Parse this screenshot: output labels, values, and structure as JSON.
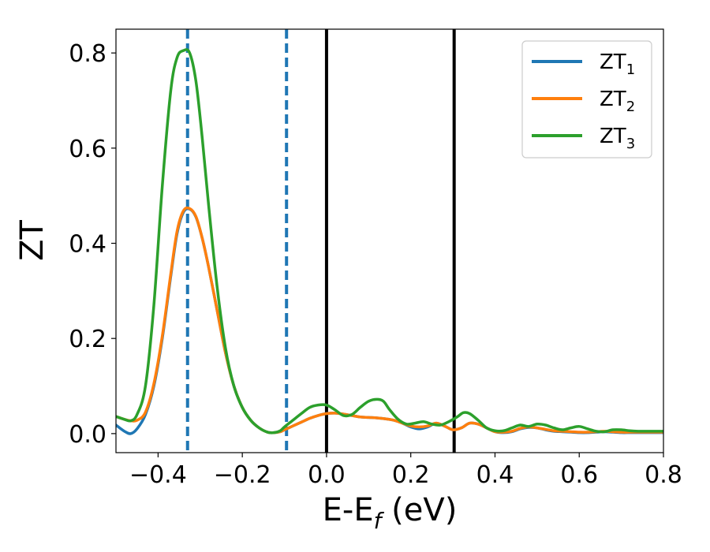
{
  "chart_data": {
    "type": "line",
    "title": "",
    "xlabel": "E-E_f (eV)",
    "xlabel_main": "E-E",
    "xlabel_sub": "f",
    "xlabel_tail": " (eV)",
    "ylabel": "ZT",
    "xlim": [
      -0.5,
      0.8
    ],
    "ylim": [
      -0.04,
      0.85
    ],
    "xticks": [
      -0.4,
      -0.2,
      0.0,
      0.2,
      0.4,
      0.6,
      0.8
    ],
    "xtick_labels": [
      "−0.4",
      "−0.2",
      "0.0",
      "0.2",
      "0.4",
      "0.6",
      "0.8"
    ],
    "yticks": [
      0.0,
      0.2,
      0.4,
      0.6,
      0.8
    ],
    "ytick_labels": [
      "0.0",
      "0.2",
      "0.4",
      "0.6",
      "0.8"
    ],
    "grid": false,
    "legend_position": "top-right",
    "vlines": [
      {
        "x": -0.33,
        "style": "dashed",
        "color": "#1f77b4"
      },
      {
        "x": -0.095,
        "style": "dashed",
        "color": "#1f77b4"
      },
      {
        "x": 0.0,
        "style": "solid",
        "color": "#000000"
      },
      {
        "x": 0.303,
        "style": "solid",
        "color": "#000000"
      }
    ],
    "series": [
      {
        "name": "ZT1",
        "name_main": "ZT",
        "name_sub": "1",
        "color": "#1f77b4",
        "x": [
          -0.5,
          -0.48,
          -0.465,
          -0.45,
          -0.43,
          -0.41,
          -0.39,
          -0.37,
          -0.355,
          -0.34,
          -0.325,
          -0.31,
          -0.295,
          -0.28,
          -0.26,
          -0.24,
          -0.22,
          -0.2,
          -0.18,
          -0.16,
          -0.14,
          -0.125,
          -0.11,
          -0.1,
          -0.08,
          -0.06,
          -0.04,
          -0.02,
          0.0,
          0.02,
          0.04,
          0.06,
          0.08,
          0.1,
          0.12,
          0.14,
          0.16,
          0.18,
          0.2,
          0.22,
          0.24,
          0.26,
          0.28,
          0.3,
          0.32,
          0.34,
          0.36,
          0.38,
          0.4,
          0.42,
          0.44,
          0.46,
          0.48,
          0.5,
          0.52,
          0.54,
          0.56,
          0.58,
          0.6,
          0.62,
          0.64,
          0.66,
          0.68,
          0.7,
          0.72,
          0.74,
          0.76,
          0.78,
          0.8
        ],
        "y": [
          0.018,
          0.005,
          0.0,
          0.01,
          0.04,
          0.1,
          0.2,
          0.33,
          0.42,
          0.465,
          0.472,
          0.455,
          0.41,
          0.35,
          0.26,
          0.17,
          0.1,
          0.055,
          0.028,
          0.012,
          0.003,
          0.002,
          0.004,
          0.008,
          0.016,
          0.024,
          0.032,
          0.038,
          0.042,
          0.043,
          0.041,
          0.038,
          0.035,
          0.034,
          0.033,
          0.031,
          0.028,
          0.022,
          0.014,
          0.01,
          0.014,
          0.022,
          0.016,
          0.008,
          0.012,
          0.022,
          0.02,
          0.012,
          0.004,
          0.002,
          0.004,
          0.01,
          0.013,
          0.012,
          0.008,
          0.005,
          0.004,
          0.003,
          0.002,
          0.002,
          0.003,
          0.004,
          0.003,
          0.002,
          0.002,
          0.002,
          0.002,
          0.002,
          0.002
        ]
      },
      {
        "name": "ZT2",
        "name_main": "ZT",
        "name_sub": "2",
        "color": "#ff7f0e",
        "x": [
          -0.5,
          -0.48,
          -0.465,
          -0.45,
          -0.43,
          -0.41,
          -0.39,
          -0.37,
          -0.355,
          -0.34,
          -0.325,
          -0.31,
          -0.295,
          -0.28,
          -0.26,
          -0.24,
          -0.22,
          -0.2,
          -0.18,
          -0.16,
          -0.14,
          -0.125,
          -0.11,
          -0.1,
          -0.08,
          -0.06,
          -0.04,
          -0.02,
          0.0,
          0.02,
          0.04,
          0.06,
          0.08,
          0.1,
          0.12,
          0.14,
          0.16,
          0.18,
          0.2,
          0.22,
          0.24,
          0.26,
          0.28,
          0.3,
          0.32,
          0.34,
          0.36,
          0.38,
          0.4,
          0.42,
          0.44,
          0.46,
          0.48,
          0.5,
          0.52,
          0.54,
          0.56,
          0.58,
          0.6,
          0.62,
          0.64,
          0.66,
          0.68,
          0.7,
          0.72,
          0.74,
          0.76,
          0.78,
          0.8
        ],
        "y": [
          0.036,
          0.03,
          0.027,
          0.028,
          0.045,
          0.105,
          0.205,
          0.335,
          0.425,
          0.468,
          0.473,
          0.456,
          0.41,
          0.35,
          0.26,
          0.17,
          0.1,
          0.055,
          0.028,
          0.012,
          0.003,
          0.002,
          0.004,
          0.008,
          0.016,
          0.024,
          0.032,
          0.038,
          0.042,
          0.043,
          0.041,
          0.038,
          0.035,
          0.034,
          0.033,
          0.031,
          0.028,
          0.022,
          0.016,
          0.014,
          0.016,
          0.022,
          0.016,
          0.008,
          0.012,
          0.022,
          0.02,
          0.012,
          0.004,
          0.003,
          0.005,
          0.011,
          0.014,
          0.012,
          0.009,
          0.006,
          0.005,
          0.004,
          0.003,
          0.003,
          0.004,
          0.005,
          0.004,
          0.003,
          0.003,
          0.003,
          0.003,
          0.003,
          0.003
        ]
      },
      {
        "name": "ZT3",
        "name_main": "ZT",
        "name_sub": "3",
        "color": "#2ca02c",
        "x": [
          -0.5,
          -0.48,
          -0.465,
          -0.45,
          -0.43,
          -0.41,
          -0.39,
          -0.37,
          -0.355,
          -0.34,
          -0.325,
          -0.31,
          -0.295,
          -0.28,
          -0.26,
          -0.24,
          -0.22,
          -0.2,
          -0.18,
          -0.16,
          -0.14,
          -0.125,
          -0.11,
          -0.1,
          -0.08,
          -0.06,
          -0.04,
          -0.02,
          0.0,
          0.02,
          0.04,
          0.06,
          0.08,
          0.1,
          0.12,
          0.135,
          0.15,
          0.17,
          0.19,
          0.21,
          0.23,
          0.25,
          0.27,
          0.29,
          0.31,
          0.325,
          0.34,
          0.36,
          0.38,
          0.4,
          0.42,
          0.44,
          0.46,
          0.48,
          0.5,
          0.52,
          0.54,
          0.56,
          0.58,
          0.6,
          0.62,
          0.64,
          0.66,
          0.68,
          0.7,
          0.72,
          0.74,
          0.76,
          0.78,
          0.8
        ],
        "y": [
          0.036,
          0.03,
          0.027,
          0.04,
          0.1,
          0.27,
          0.52,
          0.72,
          0.79,
          0.805,
          0.8,
          0.74,
          0.62,
          0.48,
          0.31,
          0.18,
          0.1,
          0.055,
          0.028,
          0.012,
          0.003,
          0.002,
          0.006,
          0.014,
          0.028,
          0.042,
          0.055,
          0.06,
          0.06,
          0.05,
          0.038,
          0.04,
          0.055,
          0.068,
          0.072,
          0.068,
          0.05,
          0.03,
          0.02,
          0.022,
          0.025,
          0.02,
          0.018,
          0.025,
          0.035,
          0.044,
          0.042,
          0.028,
          0.012,
          0.006,
          0.006,
          0.012,
          0.018,
          0.015,
          0.02,
          0.018,
          0.012,
          0.008,
          0.012,
          0.015,
          0.01,
          0.005,
          0.004,
          0.008,
          0.008,
          0.006,
          0.005,
          0.005,
          0.005,
          0.005
        ]
      }
    ]
  }
}
